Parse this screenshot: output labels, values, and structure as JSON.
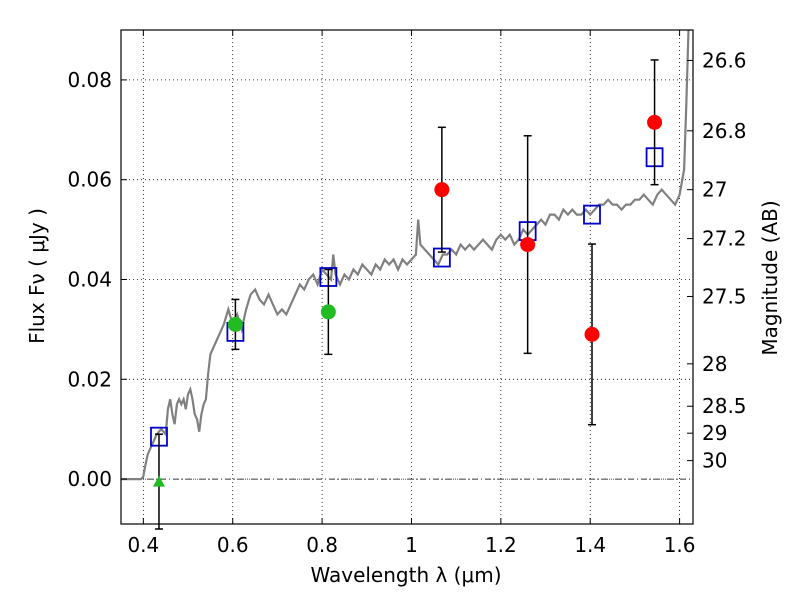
{
  "chart_data": {
    "type": "scatter",
    "xlabel": "Wavelength  λ (μm)",
    "ylabel": "Flux  Fν  ( μJy )",
    "y2label": "Magnitude (AB)",
    "xlim": [
      0.35,
      1.63
    ],
    "ylim": [
      -0.009,
      0.09
    ],
    "grid": true,
    "x_ticks": [
      0.4,
      0.6,
      0.8,
      1.0,
      1.2,
      1.4,
      1.6
    ],
    "x_tick_labels": [
      "0.4",
      "0.6",
      "0.8",
      "1",
      "1.2",
      "1.4",
      "1.6"
    ],
    "y_ticks": [
      0.0,
      0.02,
      0.04,
      0.06,
      0.08
    ],
    "y_tick_labels": [
      "0.00",
      "0.02",
      "0.04",
      "0.06",
      "0.08"
    ],
    "mag_ticks": [
      {
        "label": "26.6",
        "flux": 0.0839
      },
      {
        "label": "26.8",
        "flux": 0.0698
      },
      {
        "label": "27",
        "flux": 0.058
      },
      {
        "label": "27.2",
        "flux": 0.0482
      },
      {
        "label": "27.5",
        "flux": 0.0366
      },
      {
        "label": "28",
        "flux": 0.0231
      },
      {
        "label": "28.5",
        "flux": 0.0146
      },
      {
        "label": "29",
        "flux": 0.0092
      },
      {
        "label": "30",
        "flux": 0.0037
      }
    ],
    "colors": {
      "sed": "#808080",
      "model_box": "#0000cc",
      "obs_red": "#ff0000",
      "obs_green": "#22bb22",
      "errorbar": "#000000",
      "zero_line": "#000000"
    },
    "sed_line": [
      [
        0.35,
        0.0
      ],
      [
        0.38,
        0.0
      ],
      [
        0.395,
        0.0
      ],
      [
        0.4,
        0.0005
      ],
      [
        0.405,
        0.003
      ],
      [
        0.41,
        0.005
      ],
      [
        0.42,
        0.007
      ],
      [
        0.43,
        0.009
      ],
      [
        0.44,
        0.01
      ],
      [
        0.45,
        0.009
      ],
      [
        0.455,
        0.014
      ],
      [
        0.46,
        0.016
      ],
      [
        0.465,
        0.013
      ],
      [
        0.47,
        0.011
      ],
      [
        0.475,
        0.015
      ],
      [
        0.48,
        0.016
      ],
      [
        0.485,
        0.015
      ],
      [
        0.49,
        0.016
      ],
      [
        0.495,
        0.014
      ],
      [
        0.5,
        0.017
      ],
      [
        0.505,
        0.018
      ],
      [
        0.51,
        0.016
      ],
      [
        0.515,
        0.013
      ],
      [
        0.52,
        0.012
      ],
      [
        0.525,
        0.0095
      ],
      [
        0.53,
        0.013
      ],
      [
        0.535,
        0.015
      ],
      [
        0.54,
        0.016
      ],
      [
        0.545,
        0.021
      ],
      [
        0.55,
        0.025
      ],
      [
        0.56,
        0.027
      ],
      [
        0.57,
        0.029
      ],
      [
        0.58,
        0.031
      ],
      [
        0.59,
        0.034
      ],
      [
        0.6,
        0.031
      ],
      [
        0.61,
        0.033
      ],
      [
        0.62,
        0.03
      ],
      [
        0.63,
        0.034
      ],
      [
        0.64,
        0.037
      ],
      [
        0.65,
        0.038
      ],
      [
        0.66,
        0.036
      ],
      [
        0.67,
        0.035
      ],
      [
        0.68,
        0.037
      ],
      [
        0.69,
        0.035
      ],
      [
        0.7,
        0.033
      ],
      [
        0.71,
        0.034
      ],
      [
        0.72,
        0.033
      ],
      [
        0.73,
        0.035
      ],
      [
        0.74,
        0.037
      ],
      [
        0.75,
        0.039
      ],
      [
        0.76,
        0.038
      ],
      [
        0.77,
        0.04
      ],
      [
        0.78,
        0.041
      ],
      [
        0.79,
        0.039
      ],
      [
        0.8,
        0.042
      ],
      [
        0.81,
        0.041
      ],
      [
        0.82,
        0.04
      ],
      [
        0.825,
        0.045
      ],
      [
        0.83,
        0.041
      ],
      [
        0.84,
        0.039
      ],
      [
        0.85,
        0.041
      ],
      [
        0.86,
        0.04
      ],
      [
        0.87,
        0.042
      ],
      [
        0.88,
        0.041
      ],
      [
        0.89,
        0.043
      ],
      [
        0.9,
        0.042
      ],
      [
        0.91,
        0.041
      ],
      [
        0.92,
        0.043
      ],
      [
        0.93,
        0.042
      ],
      [
        0.94,
        0.044
      ],
      [
        0.95,
        0.043
      ],
      [
        0.96,
        0.044
      ],
      [
        0.97,
        0.042
      ],
      [
        0.98,
        0.044
      ],
      [
        0.99,
        0.043
      ],
      [
        1.0,
        0.044
      ],
      [
        1.01,
        0.045
      ],
      [
        1.015,
        0.052
      ],
      [
        1.02,
        0.047
      ],
      [
        1.03,
        0.046
      ],
      [
        1.04,
        0.045
      ],
      [
        1.05,
        0.044
      ],
      [
        1.06,
        0.043
      ],
      [
        1.07,
        0.045
      ],
      [
        1.08,
        0.045
      ],
      [
        1.09,
        0.046
      ],
      [
        1.1,
        0.045
      ],
      [
        1.11,
        0.047
      ],
      [
        1.12,
        0.046
      ],
      [
        1.13,
        0.047
      ],
      [
        1.14,
        0.046
      ],
      [
        1.15,
        0.047
      ],
      [
        1.16,
        0.048
      ],
      [
        1.17,
        0.047
      ],
      [
        1.18,
        0.046
      ],
      [
        1.19,
        0.048
      ],
      [
        1.2,
        0.049
      ],
      [
        1.21,
        0.048
      ],
      [
        1.22,
        0.049
      ],
      [
        1.23,
        0.047
      ],
      [
        1.24,
        0.048
      ],
      [
        1.25,
        0.05
      ],
      [
        1.26,
        0.049
      ],
      [
        1.27,
        0.05
      ],
      [
        1.28,
        0.051
      ],
      [
        1.29,
        0.052
      ],
      [
        1.3,
        0.051
      ],
      [
        1.31,
        0.053
      ],
      [
        1.32,
        0.053
      ],
      [
        1.33,
        0.052
      ],
      [
        1.34,
        0.054
      ],
      [
        1.35,
        0.053
      ],
      [
        1.36,
        0.054
      ],
      [
        1.37,
        0.053
      ],
      [
        1.38,
        0.053
      ],
      [
        1.39,
        0.054
      ],
      [
        1.4,
        0.053
      ],
      [
        1.41,
        0.054
      ],
      [
        1.42,
        0.055
      ],
      [
        1.43,
        0.055
      ],
      [
        1.44,
        0.056
      ],
      [
        1.45,
        0.055
      ],
      [
        1.46,
        0.055
      ],
      [
        1.47,
        0.054
      ],
      [
        1.48,
        0.055
      ],
      [
        1.49,
        0.055
      ],
      [
        1.5,
        0.056
      ],
      [
        1.51,
        0.056
      ],
      [
        1.52,
        0.057
      ],
      [
        1.53,
        0.056
      ],
      [
        1.54,
        0.055
      ],
      [
        1.55,
        0.057
      ],
      [
        1.56,
        0.058
      ],
      [
        1.57,
        0.057
      ],
      [
        1.58,
        0.056
      ],
      [
        1.59,
        0.055
      ],
      [
        1.6,
        0.057
      ],
      [
        1.61,
        0.062
      ],
      [
        1.615,
        0.075
      ],
      [
        1.62,
        0.09
      ]
    ],
    "model_points": [
      {
        "x": 0.435,
        "y": 0.0085
      },
      {
        "x": 0.606,
        "y": 0.0295
      },
      {
        "x": 0.814,
        "y": 0.0405
      },
      {
        "x": 1.068,
        "y": 0.0444
      },
      {
        "x": 1.26,
        "y": 0.0497
      },
      {
        "x": 1.404,
        "y": 0.053
      },
      {
        "x": 1.544,
        "y": 0.0645
      }
    ],
    "observed_points": [
      {
        "x": 0.435,
        "y": -0.0005,
        "err": 0.0095,
        "marker": "triangle",
        "color": "green"
      },
      {
        "x": 0.606,
        "y": 0.031,
        "err": 0.005,
        "marker": "circle",
        "color": "green"
      },
      {
        "x": 0.814,
        "y": 0.0335,
        "err": 0.0085,
        "marker": "circle",
        "color": "green"
      },
      {
        "x": 1.068,
        "y": 0.058,
        "err": 0.0125,
        "marker": "circle",
        "color": "red"
      },
      {
        "x": 1.26,
        "y": 0.047,
        "err": 0.0218,
        "marker": "circle",
        "color": "red"
      },
      {
        "x": 1.404,
        "y": 0.029,
        "err": 0.0181,
        "marker": "circle",
        "color": "red"
      },
      {
        "x": 1.544,
        "y": 0.0715,
        "err": 0.0125,
        "marker": "circle",
        "color": "red"
      }
    ]
  }
}
